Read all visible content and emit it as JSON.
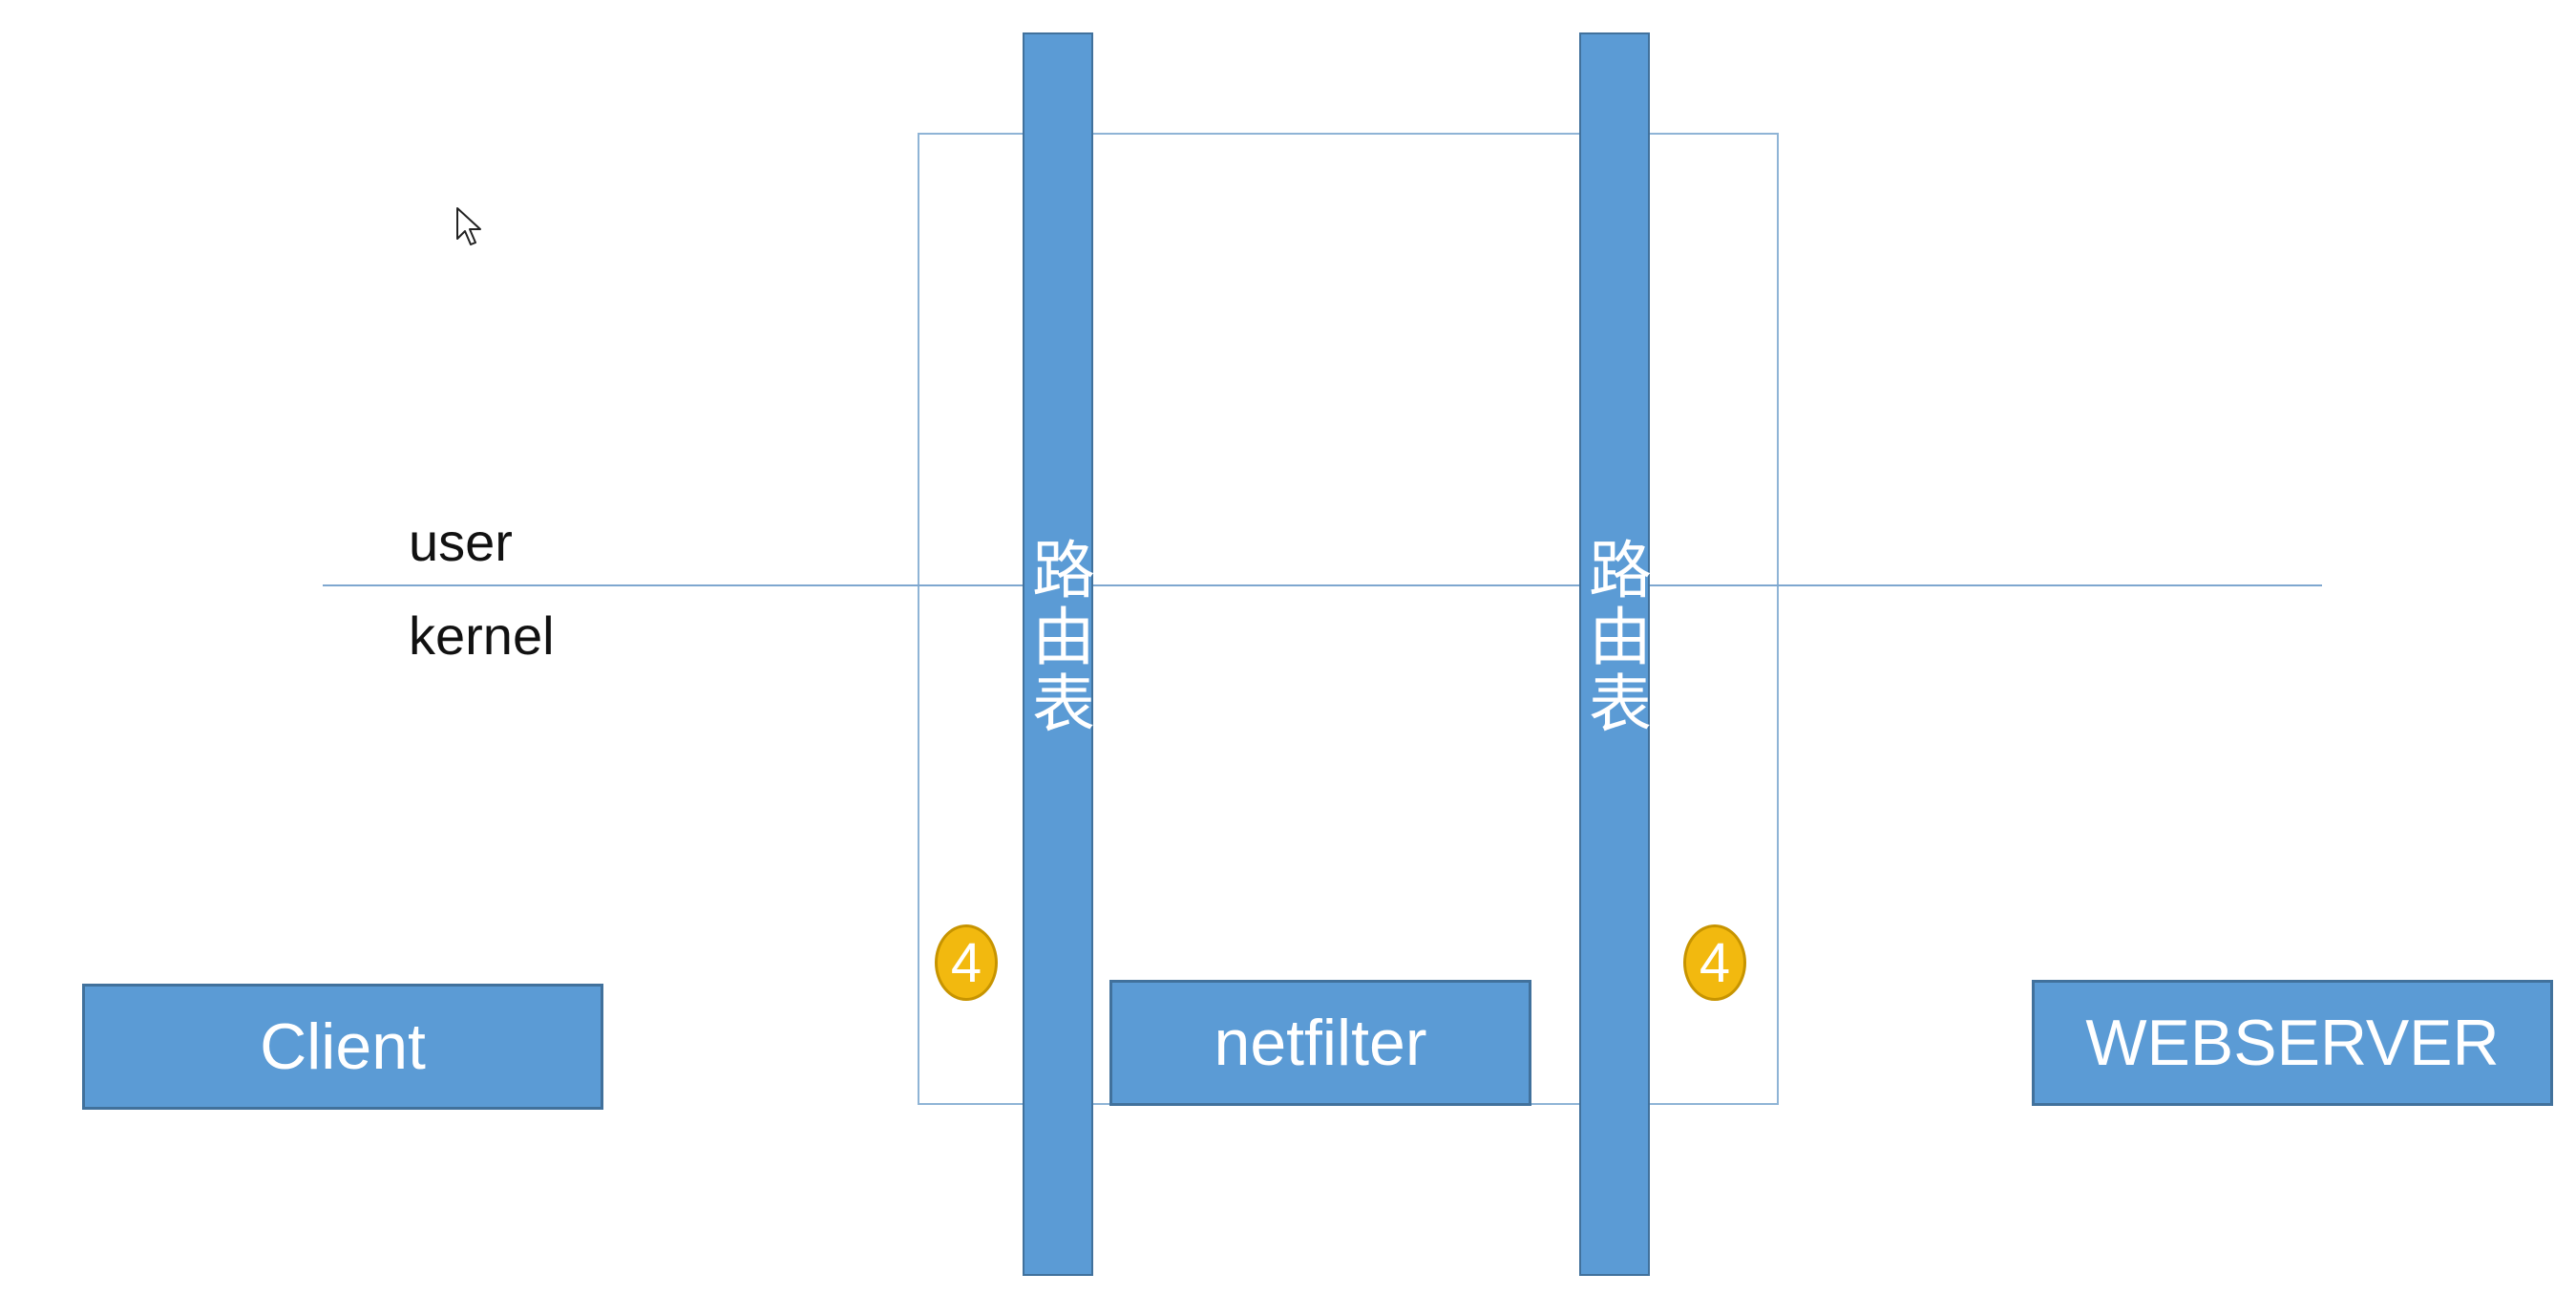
{
  "layers": {
    "user": "user",
    "kernel": "kernel"
  },
  "routing_tables": [
    {
      "label": "路由表"
    },
    {
      "label": "路由表"
    }
  ],
  "components": {
    "client": "Client",
    "netfilter": "netfilter",
    "webserver": "WEBSERVER"
  },
  "steps": [
    {
      "number": "4"
    },
    {
      "number": "4"
    }
  ],
  "colors": {
    "box_fill": "#5b9bd5",
    "box_border": "#41719c",
    "badge_fill": "#f2b90f",
    "line": "#7ea7cf"
  },
  "icons": {
    "cursor": "mouse-pointer-icon"
  }
}
